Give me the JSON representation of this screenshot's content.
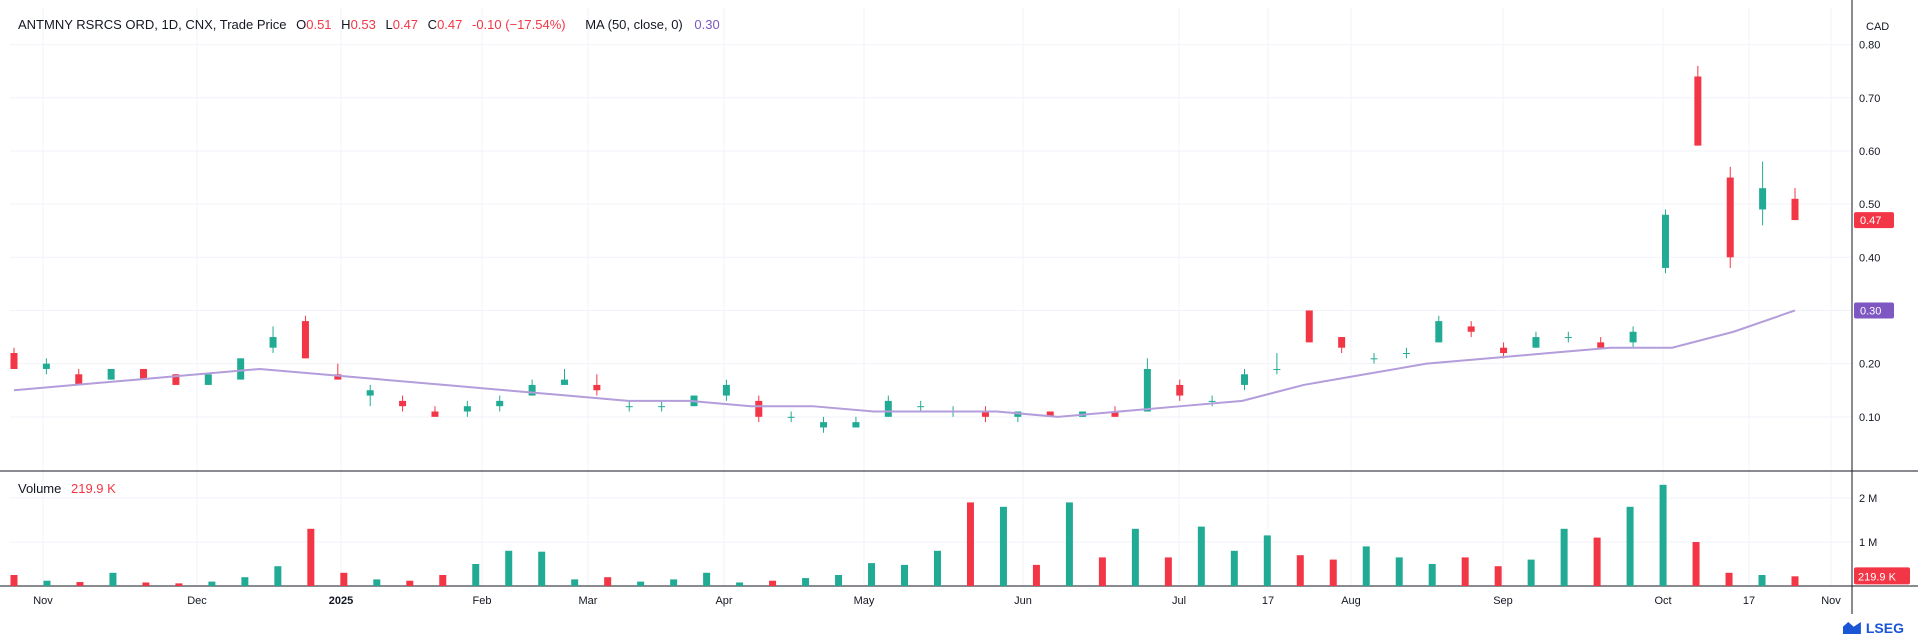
{
  "legend": {
    "symbol": "ANTMNY RSRCS ORD, 1D, CNX, Trade Price",
    "o_label": "O",
    "o_value": "0.51",
    "h_label": "H",
    "h_value": "0.53",
    "l_label": "L",
    "l_value": "0.47",
    "c_label": "C",
    "c_value": "0.47",
    "change": "-0.10 (−17.54%)",
    "ma_label": "MA (50, close, 0)",
    "ma_value": "0.30"
  },
  "volume_legend": {
    "label": "Volume",
    "value": "219.9 K"
  },
  "currency": "CAD",
  "brand": "LSEG",
  "colors": {
    "up": "#22ab94",
    "down": "#f23645",
    "ma": "#b39ddb",
    "ma_tag": "#7e57c2",
    "grid": "#f0f3fa",
    "axis": "#131722"
  },
  "chart_data": [
    {
      "type": "candlestick",
      "title": "ANTMNY RSRCS ORD, 1D, CNX, Trade Price",
      "ylim": [
        0,
        0.85
      ],
      "y_ticks": [
        "0.80",
        "0.70",
        "0.60",
        "0.50",
        "0.40",
        "0.30",
        "0.20",
        "0.10"
      ],
      "x_ticks": [
        "Nov",
        "Dec",
        "2025",
        "Feb",
        "Mar",
        "Apr",
        "May",
        "Jun",
        "Jul",
        "17",
        "Aug",
        "Sep",
        "Oct",
        "17",
        "Nov"
      ],
      "last_price_label": "0.47",
      "ma_label": "0.30",
      "series": [
        {
          "name": "Price",
          "ohlc_sampled": [
            [
              0.22,
              0.23,
              0.19,
              0.19
            ],
            [
              0.19,
              0.21,
              0.18,
              0.2
            ],
            [
              0.18,
              0.19,
              0.16,
              0.16
            ],
            [
              0.17,
              0.19,
              0.17,
              0.19
            ],
            [
              0.19,
              0.19,
              0.17,
              0.17
            ],
            [
              0.18,
              0.18,
              0.16,
              0.16
            ],
            [
              0.16,
              0.18,
              0.16,
              0.18
            ],
            [
              0.17,
              0.21,
              0.17,
              0.21
            ],
            [
              0.23,
              0.27,
              0.22,
              0.25
            ],
            [
              0.28,
              0.29,
              0.21,
              0.21
            ],
            [
              0.18,
              0.2,
              0.17,
              0.17
            ],
            [
              0.14,
              0.16,
              0.12,
              0.15
            ],
            [
              0.13,
              0.14,
              0.11,
              0.12
            ],
            [
              0.11,
              0.12,
              0.1,
              0.1
            ],
            [
              0.11,
              0.13,
              0.1,
              0.12
            ],
            [
              0.12,
              0.14,
              0.11,
              0.13
            ],
            [
              0.14,
              0.17,
              0.14,
              0.16
            ],
            [
              0.16,
              0.19,
              0.16,
              0.17
            ],
            [
              0.16,
              0.18,
              0.14,
              0.15
            ],
            [
              0.12,
              0.13,
              0.11,
              0.12
            ],
            [
              0.12,
              0.13,
              0.11,
              0.12
            ],
            [
              0.12,
              0.14,
              0.12,
              0.14
            ],
            [
              0.14,
              0.17,
              0.13,
              0.16
            ],
            [
              0.13,
              0.14,
              0.09,
              0.1
            ],
            [
              0.1,
              0.11,
              0.09,
              0.1
            ],
            [
              0.08,
              0.1,
              0.07,
              0.09
            ],
            [
              0.08,
              0.1,
              0.08,
              0.09
            ],
            [
              0.1,
              0.14,
              0.1,
              0.13
            ],
            [
              0.12,
              0.13,
              0.11,
              0.12
            ],
            [
              0.11,
              0.12,
              0.1,
              0.11
            ],
            [
              0.11,
              0.12,
              0.09,
              0.1
            ],
            [
              0.1,
              0.11,
              0.09,
              0.11
            ],
            [
              0.11,
              0.11,
              0.1,
              0.1
            ],
            [
              0.1,
              0.11,
              0.1,
              0.11
            ],
            [
              0.11,
              0.12,
              0.1,
              0.1
            ],
            [
              0.11,
              0.21,
              0.11,
              0.19
            ],
            [
              0.16,
              0.17,
              0.13,
              0.14
            ],
            [
              0.13,
              0.14,
              0.12,
              0.13
            ],
            [
              0.16,
              0.19,
              0.15,
              0.18
            ],
            [
              0.19,
              0.22,
              0.18,
              0.19
            ],
            [
              0.3,
              0.3,
              0.24,
              0.24
            ],
            [
              0.25,
              0.25,
              0.22,
              0.23
            ],
            [
              0.21,
              0.22,
              0.2,
              0.21
            ],
            [
              0.22,
              0.23,
              0.21,
              0.22
            ],
            [
              0.24,
              0.29,
              0.24,
              0.28
            ],
            [
              0.27,
              0.28,
              0.25,
              0.26
            ],
            [
              0.23,
              0.24,
              0.21,
              0.22
            ],
            [
              0.23,
              0.26,
              0.23,
              0.25
            ],
            [
              0.25,
              0.26,
              0.24,
              0.25
            ],
            [
              0.24,
              0.25,
              0.23,
              0.23
            ],
            [
              0.24,
              0.27,
              0.23,
              0.26
            ],
            [
              0.38,
              0.49,
              0.37,
              0.48
            ],
            [
              0.74,
              0.76,
              0.62,
              0.61
            ],
            [
              0.55,
              0.57,
              0.38,
              0.4
            ],
            [
              0.49,
              0.58,
              0.46,
              0.53
            ],
            [
              0.51,
              0.53,
              0.47,
              0.47
            ]
          ]
        },
        {
          "name": "MA (50, close, 0)",
          "values_sampled": [
            0.15,
            0.16,
            0.17,
            0.18,
            0.19,
            0.18,
            0.17,
            0.16,
            0.15,
            0.14,
            0.13,
            0.13,
            0.12,
            0.12,
            0.11,
            0.11,
            0.11,
            0.1,
            0.11,
            0.12,
            0.13,
            0.16,
            0.18,
            0.2,
            0.21,
            0.22,
            0.23,
            0.23,
            0.26,
            0.3
          ]
        }
      ]
    },
    {
      "type": "bar",
      "title": "Volume",
      "ylim": [
        0,
        2500000
      ],
      "y_ticks": [
        "2 M",
        "1 M"
      ],
      "last_value_label": "219.9 K",
      "values_sampled": [
        250000,
        120000,
        90000,
        300000,
        80000,
        60000,
        100000,
        200000,
        450000,
        1300000,
        300000,
        150000,
        120000,
        250000,
        500000,
        800000,
        780000,
        150000,
        200000,
        100000,
        150000,
        300000,
        80000,
        120000,
        180000,
        250000,
        520000,
        480000,
        800000,
        1900000,
        1800000,
        480000,
        1900000,
        650000,
        1300000,
        650000,
        1350000,
        800000,
        1150000,
        700000,
        600000,
        900000,
        650000,
        500000,
        650000,
        450000,
        600000,
        1300000,
        1100000,
        1800000,
        2300000,
        1000000,
        300000,
        250000,
        219900
      ]
    }
  ]
}
